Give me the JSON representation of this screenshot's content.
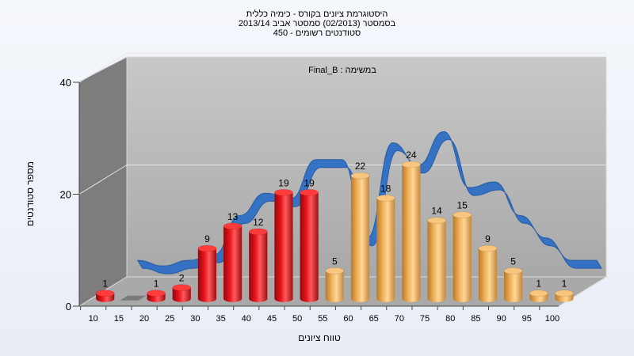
{
  "chart_data": {
    "type": "bar",
    "title_lines": [
      "היסטוגרמת ציונים בקורס - כימיה כללית",
      "בסמסטר  (02/2013)  סמסטר אביב 2013/14",
      "סטודנטים רשומים - 450"
    ],
    "annotation": "במשימה : Final_B",
    "xlabel": "טווח ציונים",
    "ylabel": "מספר סטודנטים",
    "ylim": [
      0,
      40
    ],
    "yticks": [
      0,
      20,
      40
    ],
    "x_tick_labels": [
      "10",
      "15",
      "20",
      "25",
      "30",
      "35",
      "40",
      "45",
      "50",
      "55",
      "60",
      "65",
      "70",
      "75",
      "80",
      "85",
      "90",
      "95",
      "100"
    ],
    "categories": [
      "10",
      "15",
      "20",
      "25",
      "30",
      "35",
      "40",
      "45",
      "50",
      "55",
      "60",
      "65",
      "70",
      "75",
      "80",
      "85",
      "90",
      "95",
      "100"
    ],
    "values": [
      1,
      0,
      1,
      2,
      9,
      13,
      12,
      19,
      19,
      5,
      22,
      18,
      24,
      14,
      15,
      9,
      5,
      1,
      1
    ],
    "labels": [
      "1",
      "",
      "1",
      "2",
      "9",
      "13",
      "12",
      "19",
      "19",
      "5",
      "22",
      "18",
      "24",
      "14",
      "15",
      "9",
      "5",
      "1",
      "1"
    ],
    "bar_colors": [
      "red",
      "none",
      "red",
      "red",
      "red",
      "red",
      "red",
      "red",
      "red",
      "orange",
      "orange",
      "orange",
      "orange",
      "orange",
      "orange",
      "orange",
      "orange",
      "orange",
      "orange"
    ],
    "grid": true,
    "colors": {
      "fail": "#e8141c",
      "pass": "#f2b25c",
      "trend": "#2f6fc4",
      "wall": "#b3b3b3",
      "side_wall": "#7d7d7d",
      "floor": "#a9a9a9"
    }
  }
}
